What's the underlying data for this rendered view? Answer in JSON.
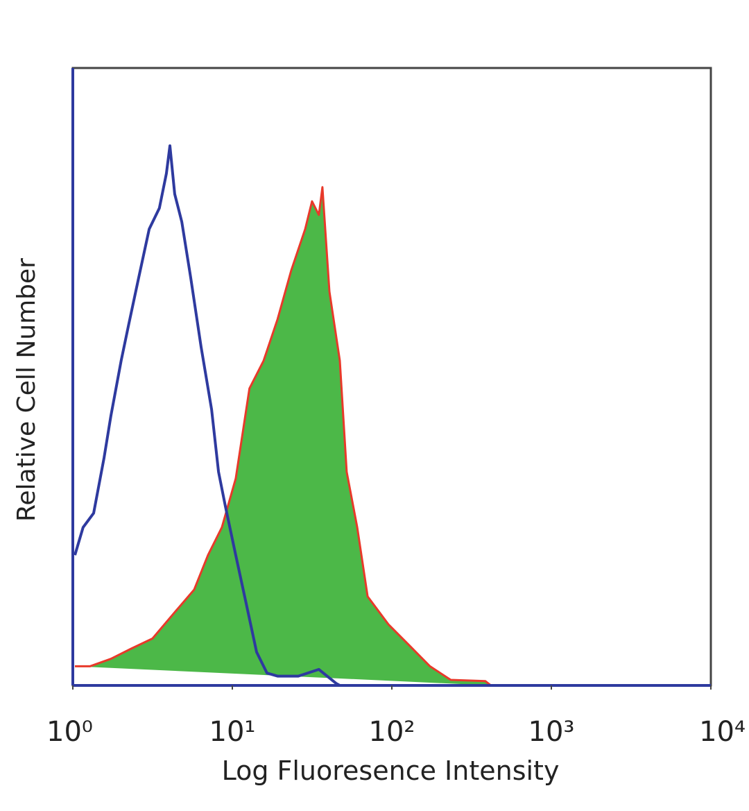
{
  "chart_data": {
    "type": "line",
    "xlabel": "Log Fluoresence Intensity",
    "ylabel": "Relative Cell Number",
    "xscale": "log",
    "xlim": [
      1,
      10000
    ],
    "xticks": [
      {
        "value": 1,
        "label": "10⁰"
      },
      {
        "value": 10,
        "label": "10¹"
      },
      {
        "value": 100,
        "label": "10²"
      },
      {
        "value": 1000,
        "label": "10³"
      },
      {
        "value": 10000,
        "label": "10⁴"
      }
    ],
    "ylim": [
      0,
      100
    ],
    "grid": false,
    "series": [
      {
        "color": "#e8392a",
        "fill": "#4cb848",
        "x": [
          1.03,
          1.28,
          1.73,
          2.34,
          3.16,
          4.27,
          5.76,
          7.04,
          8.6,
          10.5,
          12.8,
          15.7,
          19.2,
          23.4,
          28.6,
          31.6,
          34.9,
          36.7,
          40.6,
          47.2,
          52.1,
          60.7,
          70.5,
          95.1,
          128.5,
          173.4,
          234,
          386,
          418
        ],
        "values": [
          3.1,
          3.1,
          4.3,
          6.0,
          7.6,
          11.6,
          15.5,
          21.1,
          25.6,
          33.5,
          48.1,
          52.6,
          59.3,
          67.2,
          73.9,
          78.4,
          76.2,
          80.7,
          63.8,
          52.6,
          34.6,
          25.6,
          14.4,
          9.9,
          6.5,
          3.1,
          0.9,
          0.7,
          0
        ]
      },
      {
        "color": "#2e3a9f",
        "x": [
          1.03,
          1.16,
          1.35,
          1.57,
          1.73,
          2.01,
          2.23,
          2.59,
          3.01,
          3.49,
          3.86,
          4.06,
          4.35,
          4.82,
          5.48,
          6.37,
          7.41,
          8.19,
          9.05,
          10.5,
          12.2,
          14.2,
          16.5,
          19.2,
          25.9,
          34.9,
          44.9,
          47.2
        ],
        "values": [
          21.1,
          25.6,
          27.9,
          36.9,
          43.6,
          52.6,
          58.2,
          66.1,
          73.9,
          77.3,
          82.9,
          87.4,
          79.6,
          75.1,
          66.1,
          54.8,
          44.7,
          34.6,
          29.0,
          21.1,
          13.3,
          5.4,
          2.0,
          1.5,
          1.5,
          2.6,
          0.3,
          0
        ]
      }
    ]
  }
}
